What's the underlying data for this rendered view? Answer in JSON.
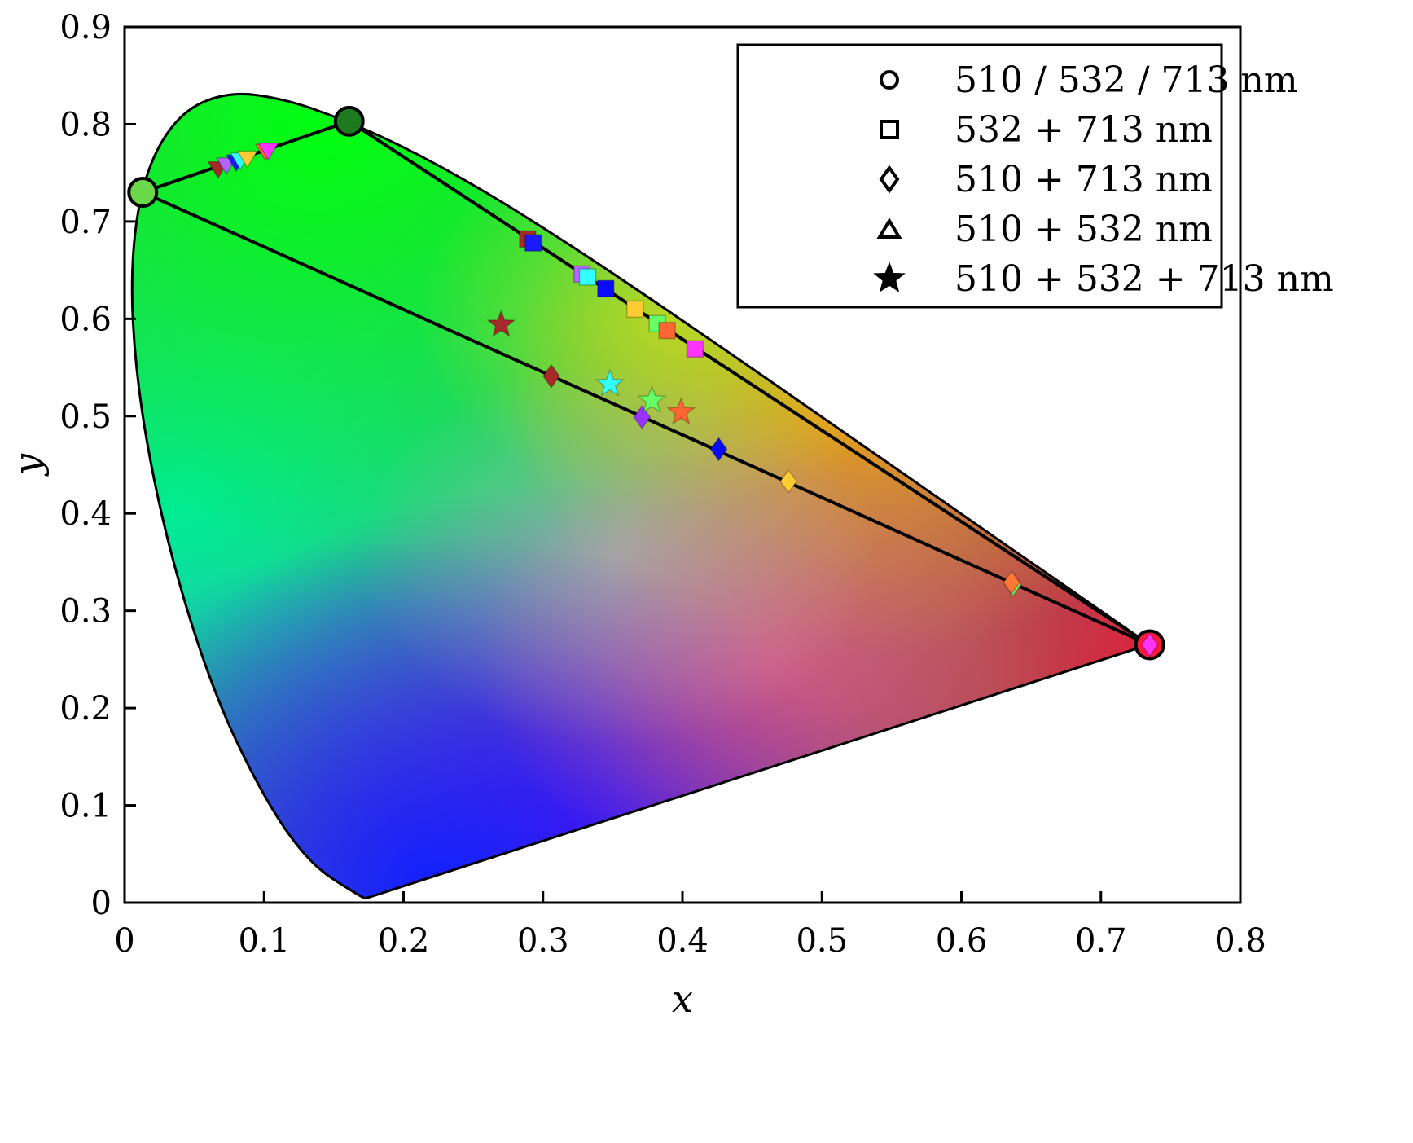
{
  "chart_data": {
    "type": "scatter",
    "xlabel": "x",
    "ylabel": "y",
    "xlim": [
      0,
      0.8
    ],
    "ylim": [
      0,
      0.9
    ],
    "xticks": [
      "0",
      "0.1",
      "0.2",
      "0.3",
      "0.4",
      "0.5",
      "0.6",
      "0.7",
      "0.8"
    ],
    "yticks": [
      "0",
      "0.1",
      "0.2",
      "0.3",
      "0.4",
      "0.5",
      "0.6",
      "0.7",
      "0.8",
      "0.9"
    ],
    "grid": false,
    "legend_position": "top-right",
    "legend": [
      {
        "label": "510 / 532 / 713 nm",
        "marker": "circle"
      },
      {
        "label": "532 + 713 nm",
        "marker": "square"
      },
      {
        "label": "510 + 713 nm",
        "marker": "diamond"
      },
      {
        "label": "510 + 532 nm",
        "marker": "triangle-down"
      },
      {
        "label": "510 + 532 + 713 nm",
        "marker": "star"
      }
    ],
    "spectral_locus": [
      [
        0.1741,
        0.005
      ],
      [
        0.1738,
        0.0049
      ],
      [
        0.1736,
        0.0049
      ],
      [
        0.173,
        0.0048
      ],
      [
        0.1721,
        0.0048
      ],
      [
        0.1703,
        0.0058
      ],
      [
        0.1666,
        0.0089
      ],
      [
        0.1611,
        0.0138
      ],
      [
        0.1566,
        0.0177
      ],
      [
        0.151,
        0.0227
      ],
      [
        0.144,
        0.0297
      ],
      [
        0.1355,
        0.0399
      ],
      [
        0.1241,
        0.0578
      ],
      [
        0.1096,
        0.0868
      ],
      [
        0.0913,
        0.1327
      ],
      [
        0.0687,
        0.2007
      ],
      [
        0.0454,
        0.295
      ],
      [
        0.0235,
        0.4127
      ],
      [
        0.0082,
        0.5384
      ],
      [
        0.0039,
        0.6548
      ],
      [
        0.0139,
        0.7502
      ],
      [
        0.0389,
        0.812
      ],
      [
        0.0743,
        0.8338
      ],
      [
        0.1142,
        0.8262
      ],
      [
        0.1547,
        0.8059
      ],
      [
        0.1929,
        0.7816
      ],
      [
        0.2296,
        0.7543
      ],
      [
        0.2658,
        0.7243
      ],
      [
        0.3016,
        0.6923
      ],
      [
        0.3373,
        0.6589
      ],
      [
        0.3731,
        0.6245
      ],
      [
        0.4087,
        0.5896
      ],
      [
        0.4441,
        0.5547
      ],
      [
        0.4788,
        0.5202
      ],
      [
        0.5125,
        0.4866
      ],
      [
        0.5448,
        0.4544
      ],
      [
        0.5752,
        0.4242
      ],
      [
        0.6029,
        0.3965
      ],
      [
        0.627,
        0.3725
      ],
      [
        0.6482,
        0.3514
      ],
      [
        0.6658,
        0.334
      ],
      [
        0.6801,
        0.3197
      ],
      [
        0.6915,
        0.3083
      ],
      [
        0.7006,
        0.2993
      ],
      [
        0.7079,
        0.292
      ],
      [
        0.714,
        0.2859
      ],
      [
        0.719,
        0.2809
      ],
      [
        0.723,
        0.277
      ],
      [
        0.726,
        0.274
      ],
      [
        0.7283,
        0.2717
      ],
      [
        0.73,
        0.27
      ],
      [
        0.7311,
        0.2689
      ],
      [
        0.732,
        0.268
      ],
      [
        0.7327,
        0.2673
      ],
      [
        0.7334,
        0.2666
      ],
      [
        0.734,
        0.266
      ],
      [
        0.7344,
        0.2656
      ],
      [
        0.7346,
        0.2654
      ],
      [
        0.7347,
        0.2653
      ]
    ],
    "source_points": [
      {
        "name": "510 nm",
        "x": 0.013,
        "y": 0.73,
        "color": "#6bd84a"
      },
      {
        "name": "532 nm",
        "x": 0.161,
        "y": 0.803,
        "color": "#1e7a1e"
      },
      {
        "name": "713 nm",
        "x": 0.735,
        "y": 0.265,
        "color": "#ff1a3c"
      }
    ],
    "gamut_lines": [
      {
        "from": "510 nm",
        "to": "532 nm"
      },
      {
        "from": "532 nm",
        "to": "713 nm"
      },
      {
        "from": "510 nm",
        "to": "713 nm"
      }
    ],
    "series": [
      {
        "name": "532 + 713 nm",
        "marker": "square",
        "points": [
          {
            "x": 0.289,
            "y": 0.682,
            "color": "#a52a2a"
          },
          {
            "x": 0.293,
            "y": 0.678,
            "color": "#1a1aff"
          },
          {
            "x": 0.328,
            "y": 0.646,
            "color": "#b266ff"
          },
          {
            "x": 0.332,
            "y": 0.643,
            "color": "#33ffff"
          },
          {
            "x": 0.345,
            "y": 0.631,
            "color": "#0a0aff"
          },
          {
            "x": 0.366,
            "y": 0.61,
            "color": "#ffcc33"
          },
          {
            "x": 0.382,
            "y": 0.595,
            "color": "#66ff66"
          },
          {
            "x": 0.389,
            "y": 0.588,
            "color": "#ff6633"
          },
          {
            "x": 0.409,
            "y": 0.569,
            "color": "#ff33ff"
          },
          {
            "x": 0.735,
            "y": 0.265,
            "color": "#ff1a3c"
          }
        ]
      },
      {
        "name": "510 + 713 nm",
        "marker": "diamond",
        "points": [
          {
            "x": 0.306,
            "y": 0.541,
            "color": "#a52a2a"
          },
          {
            "x": 0.371,
            "y": 0.499,
            "color": "#9933ff"
          },
          {
            "x": 0.426,
            "y": 0.466,
            "color": "#0a0aff"
          },
          {
            "x": 0.476,
            "y": 0.433,
            "color": "#ffcc33"
          },
          {
            "x": 0.637,
            "y": 0.327,
            "color": "#66ff66"
          },
          {
            "x": 0.636,
            "y": 0.329,
            "color": "#ff7733"
          },
          {
            "x": 0.735,
            "y": 0.265,
            "color": "#ff33ff"
          }
        ]
      },
      {
        "name": "510 + 532 nm",
        "marker": "triangle-down",
        "points": [
          {
            "x": 0.067,
            "y": 0.753,
            "color": "#a52a2a"
          },
          {
            "x": 0.073,
            "y": 0.757,
            "color": "#b266ff"
          },
          {
            "x": 0.08,
            "y": 0.76,
            "color": "#1a1aff"
          },
          {
            "x": 0.083,
            "y": 0.762,
            "color": "#33ffff"
          },
          {
            "x": 0.088,
            "y": 0.764,
            "color": "#ffcc33"
          },
          {
            "x": 0.101,
            "y": 0.771,
            "color": "#ff6633"
          },
          {
            "x": 0.103,
            "y": 0.772,
            "color": "#ff33ff"
          }
        ]
      },
      {
        "name": "510 + 532 + 713 nm",
        "marker": "star",
        "points": [
          {
            "x": 0.27,
            "y": 0.594,
            "color": "#a52a2a"
          },
          {
            "x": 0.348,
            "y": 0.533,
            "color": "#33ffff"
          },
          {
            "x": 0.378,
            "y": 0.516,
            "color": "#66ff66"
          },
          {
            "x": 0.399,
            "y": 0.504,
            "color": "#ff6633"
          }
        ]
      }
    ]
  }
}
